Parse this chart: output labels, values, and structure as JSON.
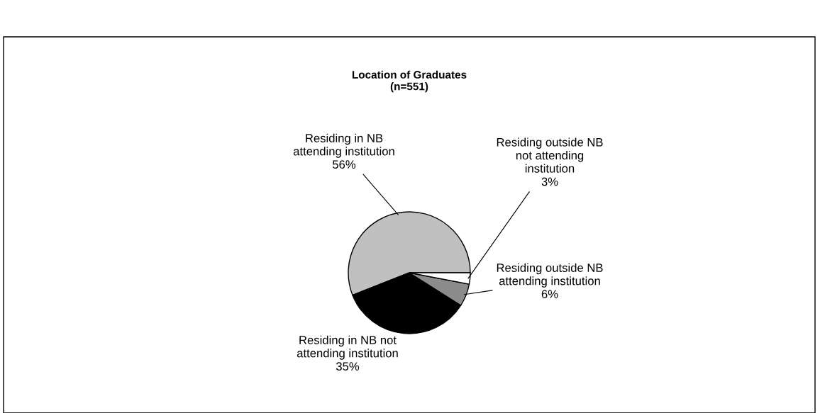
{
  "chart_data": {
    "type": "pie",
    "title": "Location of Graduates\n(n=551)",
    "categories": [
      "Residing in NB\nattending institution",
      "Residing in NB not\nattending institution",
      "Residing outside NB\nattending institution",
      "Residing outside NB\nnot attending\ninstitution"
    ],
    "values": [
      56,
      35,
      6,
      3
    ],
    "colors": [
      "#c0c0c0",
      "#000000",
      "#8c8c8c",
      "#ffffff"
    ],
    "value_labels": [
      "56%",
      "35%",
      "6%",
      "3%"
    ]
  }
}
